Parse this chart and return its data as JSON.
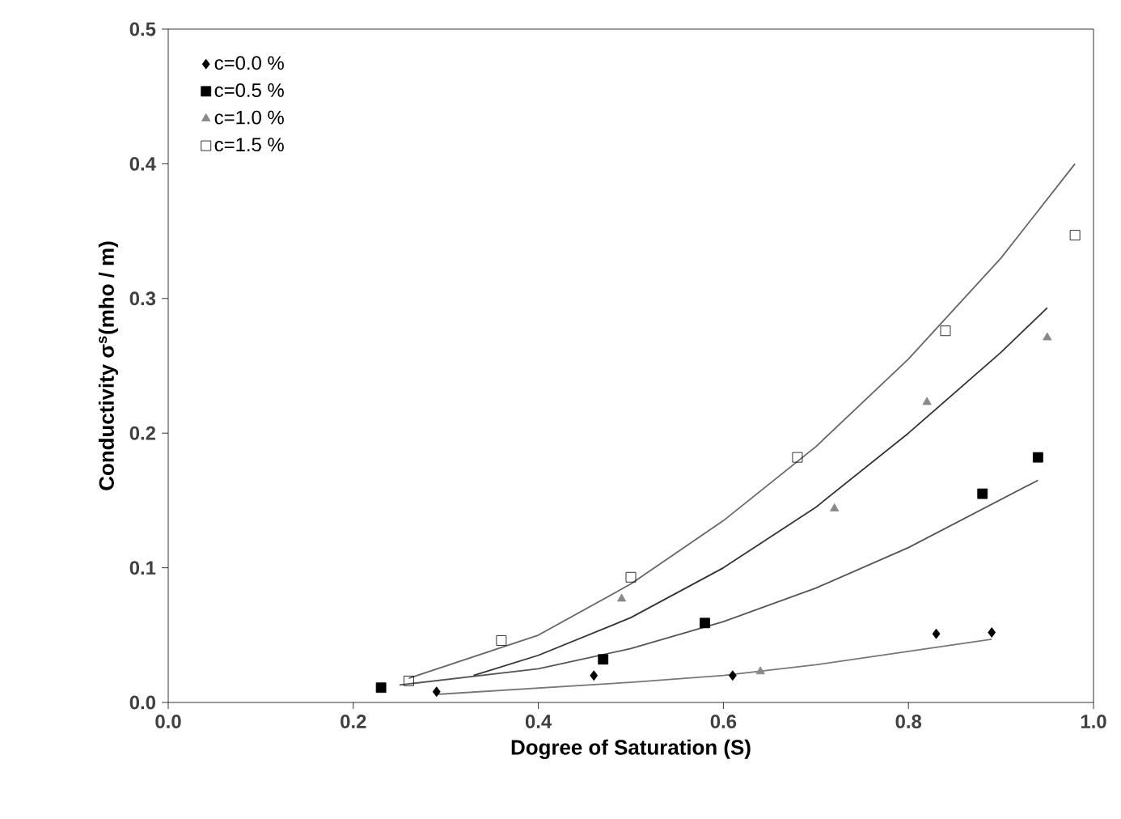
{
  "chart_data": {
    "type": "scatter",
    "xlabel": "Dogree of Saturation (S)",
    "ylabel": "Conductivity σ$^{s}$(mho / m)",
    "xlim": [
      0.0,
      1.0
    ],
    "ylim": [
      0.0,
      0.5
    ],
    "xticks": [
      {
        "value": 0.0,
        "label": "0.0"
      },
      0.2,
      0.4,
      0.6,
      0.8,
      {
        "value": 1.0,
        "label": "1.0"
      }
    ],
    "yticks": [
      {
        "value": 0.0,
        "label": "0.0"
      },
      0.1,
      0.2,
      0.3,
      0.4,
      0.5
    ],
    "grid": false,
    "legend": "top left",
    "series": [
      {
        "name": "c=0.0 %",
        "color": "#000000",
        "marker": "diamond",
        "x": [
          0.29,
          0.46,
          0.61,
          0.83,
          0.89
        ],
        "values": [
          0.008,
          0.02,
          0.02,
          0.051,
          0.052
        ]
      },
      {
        "name": "c=0.5 %",
        "color": "#000000",
        "marker": "square",
        "x": [
          0.23,
          0.47,
          0.58,
          0.88,
          0.94
        ],
        "values": [
          0.011,
          0.032,
          0.059,
          0.155,
          0.182
        ]
      },
      {
        "name": "c=1.0 %",
        "color": "#888888",
        "marker": "triangle",
        "x": [
          0.49,
          0.64,
          0.72,
          0.82,
          0.95
        ],
        "values": [
          0.077,
          0.023,
          0.144,
          0.223,
          0.271
        ]
      },
      {
        "name": "c=1.5 %",
        "color": "#000000",
        "marker": "square",
        "x": [
          0.26,
          0.36,
          0.5,
          0.68,
          0.84,
          0.98
        ],
        "values": [
          0.016,
          0.046,
          0.093,
          0.182,
          0.276,
          0.347
        ]
      },
      {
        "type": "line",
        "color": "#777777",
        "marker": "none",
        "x": [
          0.29,
          0.5,
          0.6,
          0.7,
          0.8,
          0.89
        ],
        "values": [
          0.006,
          0.015,
          0.02,
          0.028,
          0.038,
          0.047
        ]
      },
      {
        "type": "line",
        "color": "#555555",
        "marker": "none",
        "x": [
          0.25,
          0.4,
          0.5,
          0.6,
          0.7,
          0.8,
          0.94
        ],
        "values": [
          0.013,
          0.025,
          0.04,
          0.06,
          0.085,
          0.115,
          0.165
        ]
      },
      {
        "type": "line",
        "color": "#333333",
        "marker": "none",
        "x": [
          0.33,
          0.4,
          0.5,
          0.6,
          0.7,
          0.8,
          0.9,
          0.95
        ],
        "values": [
          0.02,
          0.035,
          0.063,
          0.1,
          0.145,
          0.2,
          0.26,
          0.293
        ]
      },
      {
        "type": "line",
        "color": "#666666",
        "marker": "none",
        "x": [
          0.26,
          0.4,
          0.5,
          0.6,
          0.7,
          0.8,
          0.9,
          0.98
        ],
        "values": [
          0.018,
          0.05,
          0.088,
          0.135,
          0.19,
          0.255,
          0.33,
          0.4
        ]
      }
    ]
  }
}
